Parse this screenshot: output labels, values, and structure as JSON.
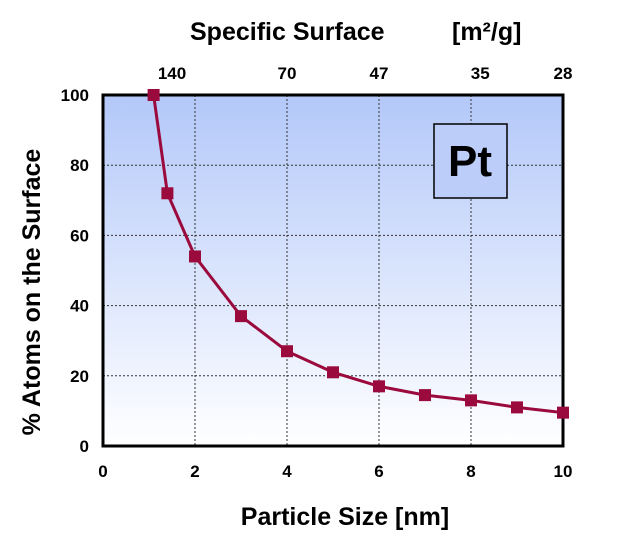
{
  "chart_data": {
    "type": "line",
    "title": "",
    "top_axis": {
      "label": "Specific Surface",
      "unit": "[m²/g]",
      "tick_positions_nm": [
        2,
        4,
        6,
        8,
        10
      ],
      "tick_labels": [
        "140",
        "70",
        "47",
        "35",
        "28"
      ],
      "extra_label": {
        "at_nm": 10,
        "text": "28"
      }
    },
    "xlabel": "Particle Size [nm]",
    "ylabel": "% Atoms on the Surface",
    "xlim": [
      0,
      10
    ],
    "ylim": [
      0,
      100
    ],
    "x_ticks": [
      0,
      2,
      4,
      6,
      8,
      10
    ],
    "y_ticks": [
      0,
      20,
      40,
      60,
      80,
      100
    ],
    "grid": true,
    "annotation": "Pt",
    "series": [
      {
        "color": "#9b0a3c",
        "x": [
          1.1,
          1.4,
          2.0,
          3.0,
          4.0,
          5.0,
          6.0,
          7.0,
          8.0,
          9.0,
          10.0
        ],
        "y": [
          100,
          72,
          54,
          37,
          27,
          21,
          17,
          14.5,
          13,
          11,
          9.5
        ]
      }
    ],
    "colors": {
      "plot_top": "#b3c8f9",
      "plot_bottom": "#ffffff",
      "annotation_box": "#bccdf9",
      "series": "#9b0a3c"
    }
  }
}
